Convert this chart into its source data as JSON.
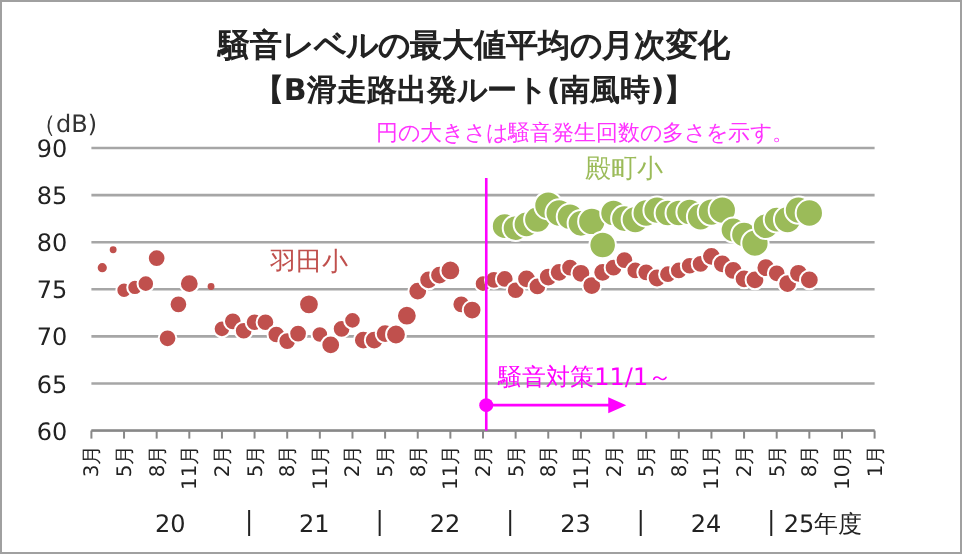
{
  "chart_data": {
    "type": "bubble",
    "title": "騒音レベルの最大値平均の月次変化",
    "subtitle": "【B滑走路出発ルート(南風時)】",
    "ylabel": "（dB)",
    "categories": [
      "3月",
      null,
      null,
      "5月",
      null,
      null,
      "8月",
      null,
      null,
      "11月",
      null,
      null,
      "2月",
      null,
      null,
      "5月",
      null,
      null,
      "8月",
      null,
      null,
      "11月",
      null,
      null,
      "2月",
      null,
      null,
      "5月",
      null,
      null,
      "8月",
      null,
      null,
      "11月",
      null,
      null,
      "2月",
      null,
      null,
      "5月",
      null,
      null,
      "8月",
      null,
      null,
      "11月",
      null,
      null,
      "2月",
      null,
      null,
      "5月",
      null,
      null,
      "8月",
      null,
      null,
      "11月",
      null,
      null,
      "2月",
      null,
      null,
      "5月",
      null,
      null,
      "8月",
      null,
      null,
      "10月",
      null,
      null,
      "1月"
    ],
    "ylim": [
      60,
      90
    ],
    "yticks": [
      60,
      65,
      70,
      75,
      80,
      85,
      90
    ],
    "grid": "y",
    "legend": false,
    "series": [
      {
        "name": "羽田小",
        "color": "#c0504d",
        "values": [
          null,
          77.3,
          79.2,
          74.9,
          75.2,
          75.6,
          78.3,
          69.8,
          73.4,
          75.6,
          null,
          75.3,
          70.8,
          71.6,
          70.6,
          71.5,
          71.5,
          70.2,
          69.5,
          70.3,
          73.4,
          70.2,
          69.1,
          70.8,
          71.7,
          69.6,
          69.6,
          70.3,
          70.2,
          72.2,
          74.8,
          76.0,
          76.5,
          77.0,
          73.4,
          72.8,
          75.6,
          76.0,
          76.1,
          74.9,
          76.1,
          75.3,
          76.3,
          76.8,
          77.3,
          76.7,
          75.4,
          76.8,
          77.3,
          78.1,
          77.0,
          76.8,
          76.2,
          76.6,
          77.0,
          77.5,
          77.7,
          78.5,
          77.7,
          77.0,
          76.1,
          76.0,
          77.3,
          76.7,
          75.6,
          76.7,
          76.0,
          null,
          null,
          null,
          null,
          null,
          null
        ],
        "sizes": [
          null,
          0.16,
          0.06,
          0.3,
          0.3,
          0.35,
          0.4,
          0.4,
          0.4,
          0.45,
          null,
          0.06,
          0.35,
          0.4,
          0.4,
          0.4,
          0.4,
          0.4,
          0.4,
          0.4,
          0.5,
          0.35,
          0.45,
          0.4,
          0.35,
          0.45,
          0.45,
          0.45,
          0.5,
          0.5,
          0.45,
          0.45,
          0.45,
          0.5,
          0.4,
          0.45,
          0.35,
          0.4,
          0.4,
          0.4,
          0.45,
          0.4,
          0.45,
          0.45,
          0.4,
          0.45,
          0.45,
          0.45,
          0.4,
          0.4,
          0.4,
          0.4,
          0.45,
          0.4,
          0.4,
          0.4,
          0.4,
          0.45,
          0.45,
          0.45,
          0.45,
          0.45,
          0.45,
          0.4,
          0.45,
          0.45,
          0.45,
          null,
          null,
          null,
          null,
          null,
          null
        ]
      },
      {
        "name": "殿町小",
        "color": "#9bbb59",
        "values": [
          null,
          null,
          null,
          null,
          null,
          null,
          null,
          null,
          null,
          null,
          null,
          null,
          null,
          null,
          null,
          null,
          null,
          null,
          null,
          null,
          null,
          null,
          null,
          null,
          null,
          null,
          null,
          null,
          null,
          null,
          null,
          null,
          null,
          null,
          null,
          null,
          null,
          null,
          81.7,
          81.5,
          81.9,
          82.4,
          83.9,
          83.1,
          82.7,
          82.0,
          82.2,
          79.7,
          83.1,
          82.5,
          82.4,
          83.1,
          83.4,
          83.1,
          83.1,
          83.2,
          82.7,
          83.2,
          83.4,
          81.3,
          80.8,
          79.9,
          81.7,
          82.4,
          82.4,
          83.4,
          83.1,
          null,
          null,
          null,
          null,
          null,
          null
        ],
        "sizes": [
          null,
          null,
          null,
          null,
          null,
          null,
          null,
          null,
          null,
          null,
          null,
          null,
          null,
          null,
          null,
          null,
          null,
          null,
          null,
          null,
          null,
          null,
          null,
          null,
          null,
          null,
          null,
          null,
          null,
          null,
          null,
          null,
          null,
          null,
          null,
          null,
          null,
          null,
          0.85,
          0.85,
          0.85,
          0.9,
          1,
          0.95,
          0.9,
          0.9,
          0.95,
          0.9,
          0.9,
          0.9,
          0.95,
          0.95,
          0.95,
          0.9,
          0.9,
          0.9,
          0.95,
          0.95,
          0.95,
          0.8,
          0.85,
          0.95,
          0.85,
          0.85,
          0.95,
          0.95,
          0.95,
          null,
          null,
          null,
          null,
          null,
          null
        ]
      }
    ],
    "annotations": [
      "円の大きさは騒音発生回数の多さを示す。",
      "騒音対策11/1～",
      "20",
      "21",
      "22",
      "23",
      "24",
      "25年度"
    ]
  }
}
